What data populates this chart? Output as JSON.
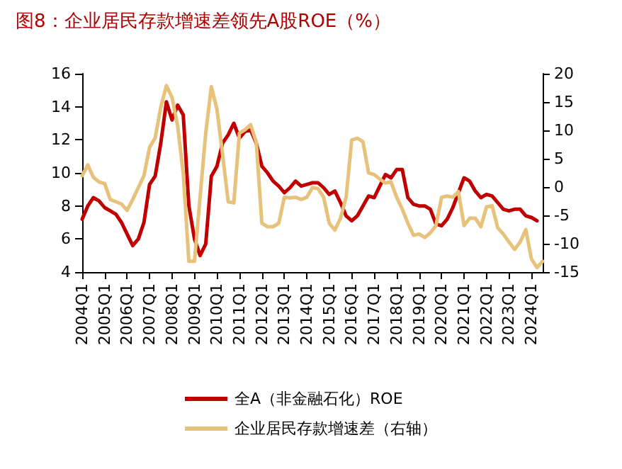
{
  "chart_data": {
    "type": "line",
    "title": "图8：企业居民存款增速差领先A股ROE（%）",
    "categories": [
      "2004Q1",
      null,
      null,
      null,
      "2005Q1",
      null,
      null,
      null,
      "2006Q1",
      null,
      null,
      null,
      "2007Q1",
      null,
      null,
      null,
      "2008Q1",
      null,
      null,
      null,
      "2009Q1",
      null,
      null,
      null,
      "2010Q1",
      null,
      null,
      null,
      "2011Q1",
      null,
      null,
      null,
      "2012Q1",
      null,
      null,
      null,
      "2013Q1",
      null,
      null,
      null,
      "2014Q1",
      null,
      null,
      null,
      "2015Q1",
      null,
      null,
      null,
      "2016Q1",
      null,
      null,
      null,
      "2017Q1",
      null,
      null,
      null,
      "2018Q1",
      null,
      null,
      null,
      "2019Q1",
      null,
      null,
      null,
      "2020Q1",
      null,
      null,
      null,
      "2021Q1",
      null,
      null,
      null,
      "2022Q1",
      null,
      null,
      null,
      "2023Q1",
      null,
      null,
      null,
      "2024Q1",
      null,
      null
    ],
    "series": [
      {
        "name": "全A（非金融石化）ROE",
        "color": "#c00000",
        "values": [
          7.2,
          8.0,
          8.5,
          8.3,
          7.9,
          7.7,
          7.5,
          7.0,
          6.3,
          5.6,
          6.0,
          7.0,
          9.3,
          9.8,
          11.8,
          14.3,
          13.2,
          14.1,
          13.5,
          8.0,
          6.0,
          5.0,
          5.7,
          9.8,
          10.4,
          11.8,
          12.3,
          13.0,
          12.1,
          12.5,
          12.6,
          11.8,
          10.4,
          10.0,
          9.5,
          9.2,
          8.8,
          9.1,
          9.5,
          9.2,
          9.3,
          9.4,
          9.4,
          9.1,
          8.7,
          8.9,
          8.2,
          7.4,
          7.1,
          7.4,
          8.0,
          8.6,
          8.5,
          9.2,
          9.9,
          9.7,
          10.2,
          10.2,
          8.5,
          8.1,
          8.0,
          8.0,
          7.8,
          6.9,
          6.8,
          7.2,
          7.9,
          8.8,
          9.7,
          9.5,
          8.9,
          8.5,
          8.7,
          8.6,
          8.2,
          7.8,
          7.7,
          7.8,
          7.8,
          7.4,
          7.3,
          7.1,
          null
        ]
      },
      {
        "name": "企业居民存款增速差（右轴）",
        "color": "#e6c27a",
        "axis": "y2",
        "values": [
          2.0,
          3.9,
          1.7,
          0.9,
          0.6,
          -2.2,
          -2.6,
          -3.0,
          -4.1,
          -2.2,
          -0.1,
          2.0,
          7.0,
          8.7,
          14.1,
          17.9,
          15.8,
          10.8,
          2.4,
          -13.1,
          -13.1,
          -1.8,
          9.5,
          17.7,
          13.7,
          5.8,
          -2.6,
          -2.8,
          9.5,
          10.1,
          11.0,
          7.9,
          -6.4,
          -7.0,
          -7.0,
          -6.4,
          -1.8,
          -1.9,
          -1.8,
          -2.2,
          -1.8,
          -0.1,
          -0.3,
          -1.8,
          -6.4,
          -7.6,
          -5.5,
          -1.8,
          8.3,
          8.6,
          8.0,
          2.5,
          2.2,
          1.4,
          0.7,
          0.9,
          -1.8,
          -3.9,
          -6.4,
          -8.5,
          -8.3,
          -8.9,
          -8.1,
          -6.8,
          -1.8,
          -1.6,
          -1.8,
          -0.8,
          -6.8,
          -5.5,
          -5.5,
          -7.0,
          -3.5,
          -3.3,
          -7.2,
          -8.3,
          -9.7,
          -11.0,
          -9.7,
          -7.5,
          -12.7,
          -14.2,
          -13.1
        ]
      }
    ],
    "ylim": [
      4,
      16
    ],
    "yticks": [
      4,
      6,
      8,
      10,
      12,
      14,
      16
    ],
    "y2lim": [
      -15,
      20
    ],
    "y2ticks": [
      -15,
      -10,
      -5,
      0,
      5,
      10,
      15,
      20
    ],
    "legend": "bottom",
    "grid": false,
    "marker": "none",
    "line_style": "solid"
  }
}
